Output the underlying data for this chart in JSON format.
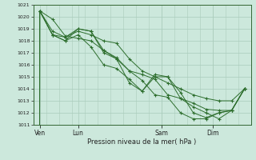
{
  "title": "",
  "xlabel": "Pression niveau de la mer( hPa )",
  "ylabel": "",
  "bg_color": "#cce8dc",
  "line_color": "#2d6e2d",
  "grid_color": "#aaccbb",
  "ylim": [
    1011,
    1021
  ],
  "yticks": [
    1011,
    1012,
    1013,
    1014,
    1015,
    1016,
    1017,
    1018,
    1019,
    1020,
    1021
  ],
  "xtick_labels": [
    "Ven",
    "Lun",
    "Sam",
    "Dim"
  ],
  "xtick_positions": [
    0.5,
    3.5,
    10.0,
    14.0
  ],
  "xlim": [
    0,
    17
  ],
  "series": [
    [
      0.3,
      1020.5,
      1019.8,
      1018.4,
      1018.2,
      1018.0,
      1017.2,
      1016.6,
      1015.5,
      1015.2,
      1014.8,
      1013.5,
      1013.2,
      1012.8,
      1012.3,
      1012.2,
      1012.2,
      1014.0
    ],
    [
      0.3,
      1020.5,
      1018.8,
      1018.3,
      1019.0,
      1018.8,
      1017.2,
      1016.5,
      1014.5,
      1013.8,
      1015.0,
      1015.0,
      1013.7,
      1012.0,
      1011.6,
      1012.0,
      1012.2,
      1014.0
    ],
    [
      0.3,
      1020.5,
      1018.5,
      1018.0,
      1018.5,
      1017.5,
      1016.0,
      1015.7,
      1014.8,
      1013.8,
      1015.2,
      1015.0,
      1013.2,
      1012.5,
      1012.0,
      1011.5,
      1012.2,
      1014.0
    ],
    [
      0.3,
      1020.5,
      1018.5,
      1018.0,
      1019.0,
      1018.8,
      1017.0,
      1016.5,
      1015.5,
      1014.7,
      1013.5,
      1013.3,
      1012.0,
      1011.5,
      1011.5,
      1012.0,
      1012.2,
      1014.0
    ],
    [
      0.3,
      1020.5,
      1018.5,
      1018.3,
      1018.8,
      1018.5,
      1018.0,
      1017.8,
      1016.5,
      1015.5,
      1015.0,
      1014.5,
      1014.0,
      1013.5,
      1013.2,
      1013.0,
      1013.0,
      1014.0
    ]
  ],
  "x_vals": [
    0,
    0.5,
    1.5,
    2.5,
    3.5,
    4.5,
    5.5,
    6.5,
    7.5,
    8.5,
    9.5,
    10.5,
    11.5,
    12.5,
    13.5,
    14.5,
    15.5,
    16.5
  ]
}
